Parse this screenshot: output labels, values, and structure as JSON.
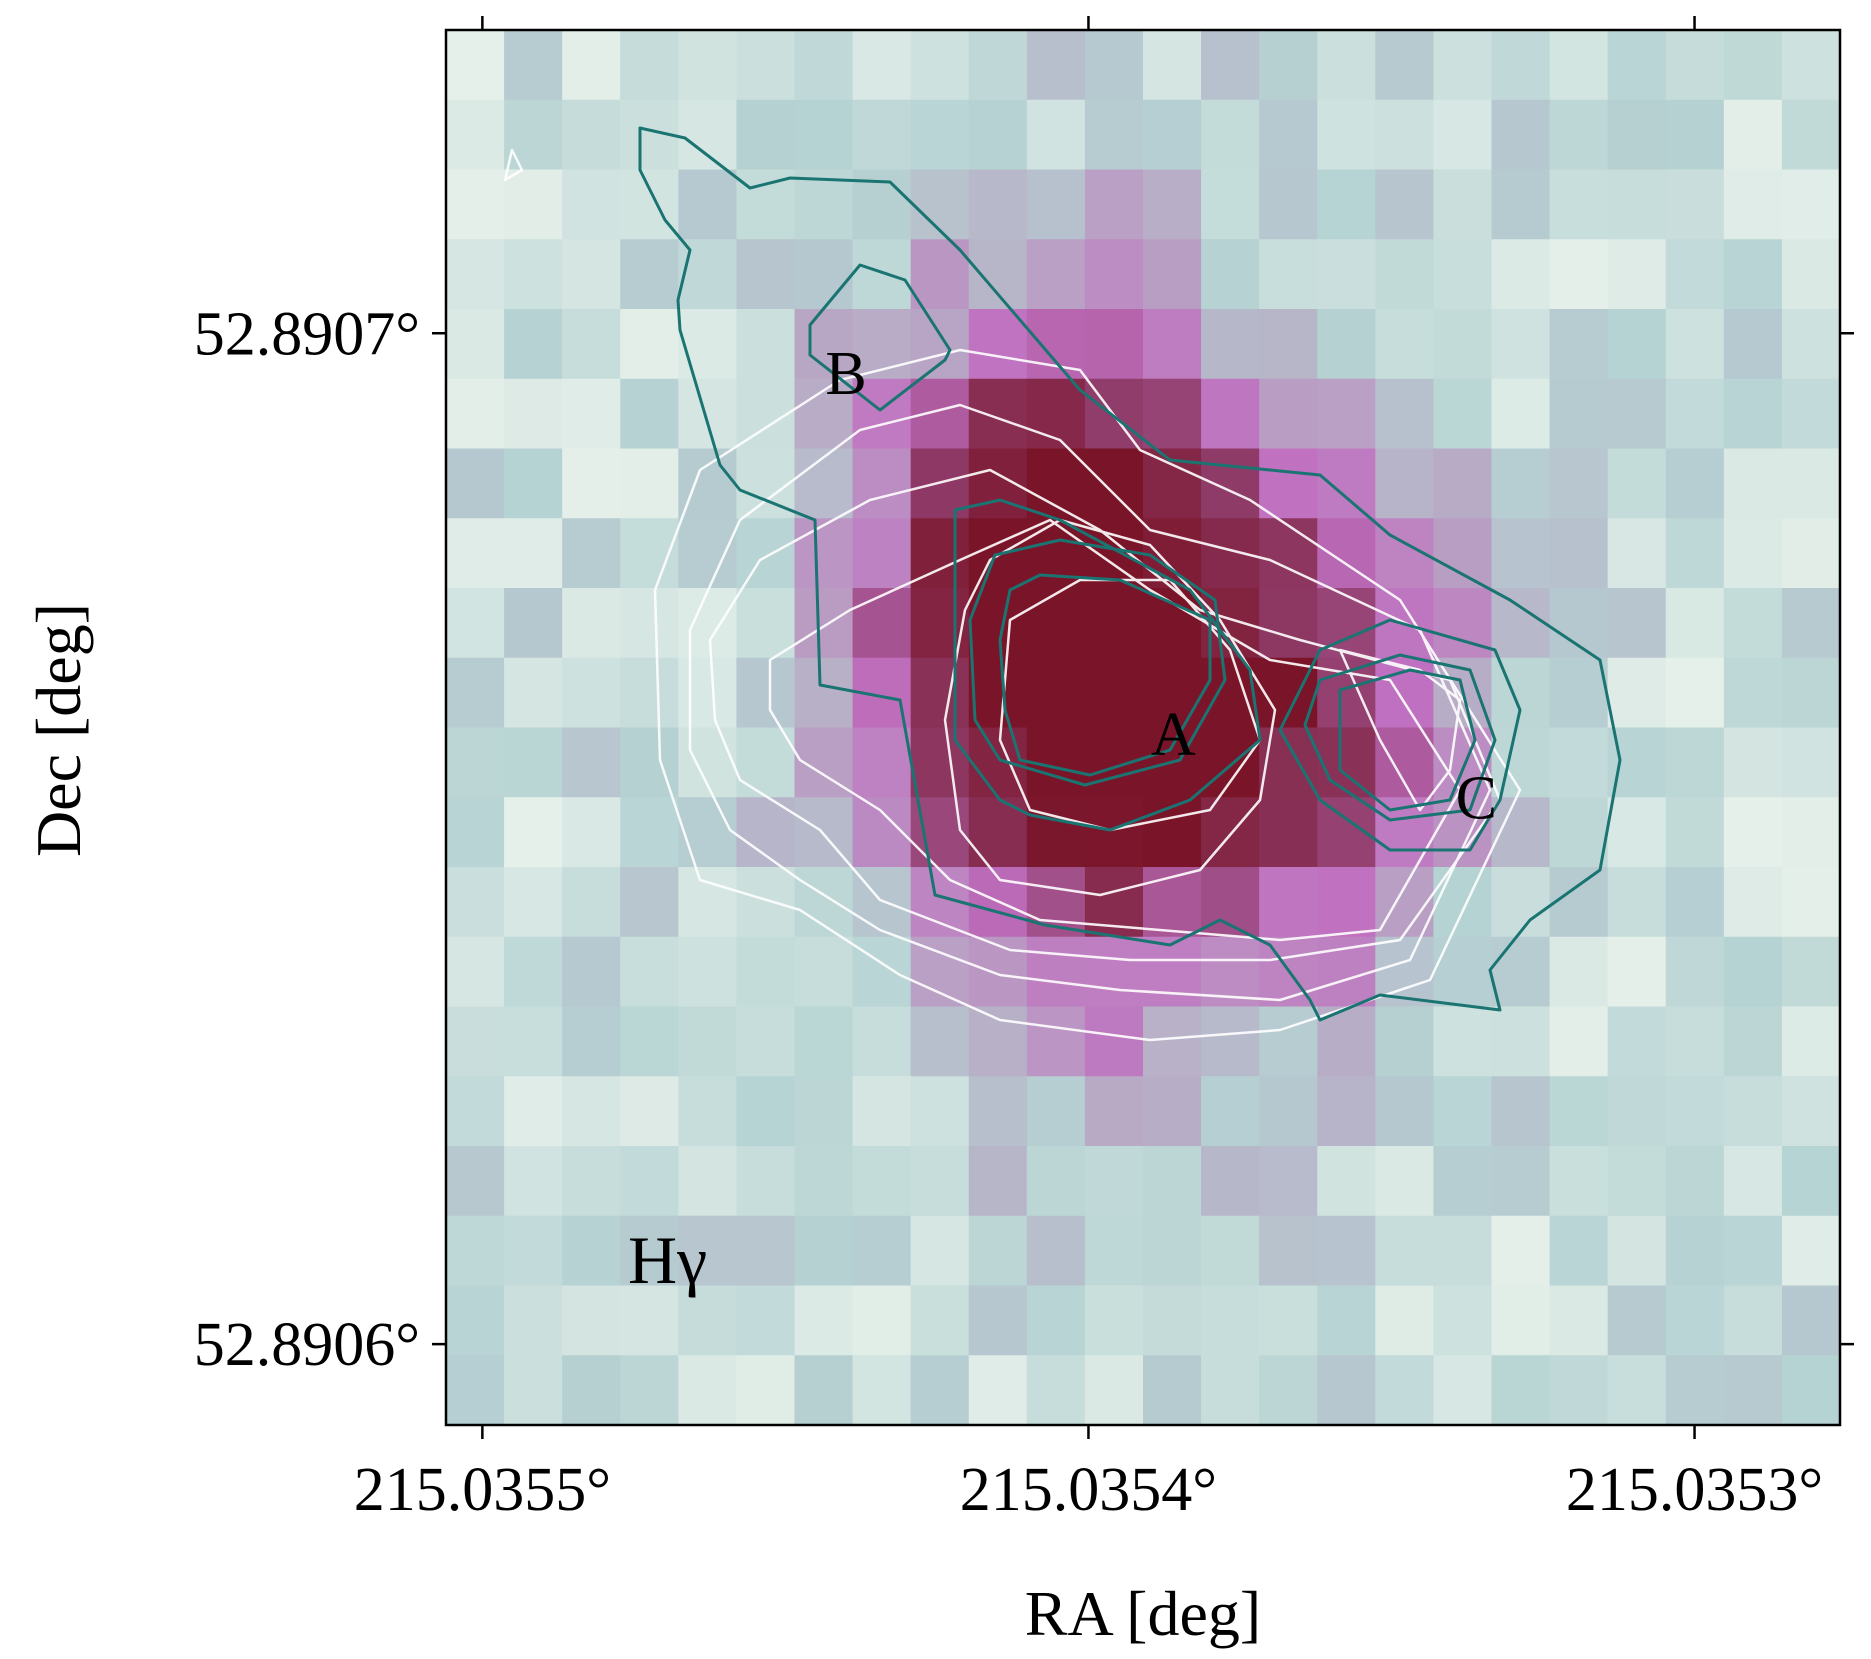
{
  "chart_data": {
    "type": "heatmap",
    "title": "",
    "xlabel": "RA [deg]",
    "ylabel": "Dec [deg]",
    "xlim": [
      215.035506,
      215.035276
    ],
    "ylim": [
      52.890592,
      52.89073
    ],
    "x_inverted": true,
    "x_ticks": [
      {
        "value": 215.0355,
        "label": "215.0355°"
      },
      {
        "value": 215.0354,
        "label": "215.0354°"
      },
      {
        "value": 215.0353,
        "label": "215.0353°"
      }
    ],
    "y_ticks": [
      {
        "value": 52.8907,
        "label": "52.8907°"
      },
      {
        "value": 52.8906,
        "label": "52.8906°"
      }
    ],
    "grid": false,
    "panel_label": "Hγ",
    "colors": {
      "low": "#e6f0ea",
      "mid_teal": "#b6d3d3",
      "mid_magenta": "#c070c0",
      "high": "#7a1428",
      "contour_white": "#ffffff",
      "contour_teal": "#1a7472"
    },
    "annotations": [
      {
        "text": "A",
        "ra": 215.035386,
        "dec": 52.8906583
      },
      {
        "text": "B",
        "ra": 215.03544,
        "dec": 52.890694
      },
      {
        "text": "C",
        "ra": 215.035336,
        "dec": 52.890652
      }
    ],
    "peaks": [
      {
        "ra": 215.035398,
        "dec": 52.890666,
        "amplitude": 1.0,
        "sigma": 2.25e-05
      },
      {
        "ra": 215.035358,
        "dec": 52.890661,
        "amplitude": 0.45,
        "sigma": 1.7e-05
      },
      {
        "ra": 215.035418,
        "dec": 52.890678,
        "amplitude": 0.3,
        "sigma": 1.8e-05
      }
    ]
  }
}
